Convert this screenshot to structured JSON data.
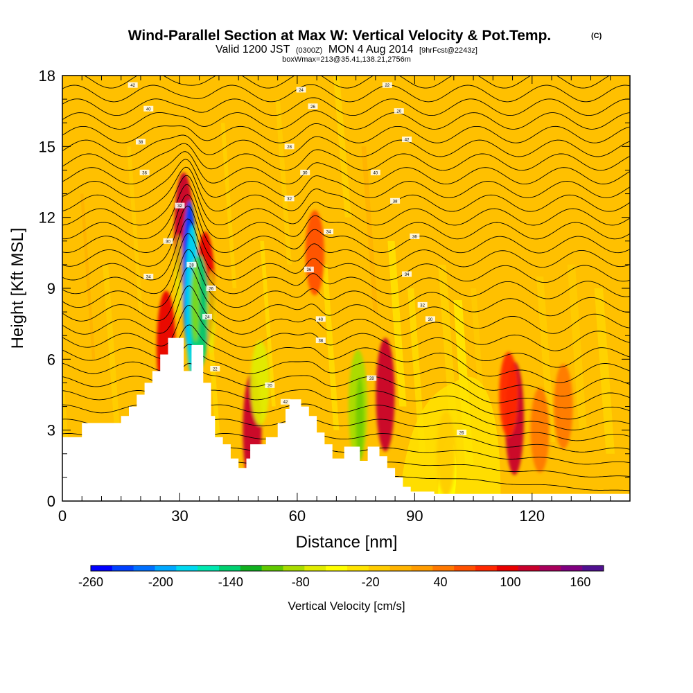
{
  "chart_data": {
    "type": "heatmap",
    "title": "Wind-Parallel Section at Max W: Vertical Velocity & Pot.Temp.",
    "title_mark": "(C)",
    "subtitle_a": "Valid 1200 JST",
    "subtitle_b": "(0300Z)",
    "subtitle_c": "MON 4 Aug 2014",
    "subtitle_d": "[9hrFcst@2243z]",
    "subtitle2": "boxWmax=213@35.41,138.21,2756m",
    "xlabel": "Distance [nm]",
    "ylabel": "Height [Kft MSL]",
    "xlim": [
      0,
      145
    ],
    "ylim": [
      0,
      18
    ],
    "x_ticks": [
      "0",
      "30",
      "60",
      "90",
      "120"
    ],
    "y_ticks": [
      "0",
      "3",
      "6",
      "9",
      "12",
      "15",
      "18"
    ],
    "colorbar": {
      "title": "Vertical Velocity [cm/s]",
      "labels": [
        "-260",
        "-200",
        "-140",
        "-80",
        "-20",
        "40",
        "100",
        "160"
      ],
      "min": -260,
      "max": 180,
      "colors": [
        "#0000ff",
        "#0040ff",
        "#0070ff",
        "#00a8ff",
        "#00d8f0",
        "#00e8b0",
        "#00d070",
        "#10b020",
        "#60c800",
        "#a8dc00",
        "#e0ec00",
        "#ffff00",
        "#ffe400",
        "#ffcc00",
        "#ffb400",
        "#ff9c00",
        "#ff7800",
        "#ff5000",
        "#ff2800",
        "#e80000",
        "#c8002c",
        "#a8005c",
        "#800080",
        "#501090"
      ]
    },
    "terrain_nm_kft": [
      [
        0,
        2.7
      ],
      [
        5,
        2.7
      ],
      [
        5,
        3.3
      ],
      [
        15,
        3.3
      ],
      [
        15,
        3.6
      ],
      [
        17,
        3.6
      ],
      [
        17,
        4.0
      ],
      [
        19,
        4.0
      ],
      [
        19,
        4.5
      ],
      [
        21,
        4.5
      ],
      [
        21,
        5.0
      ],
      [
        23,
        5.0
      ],
      [
        23,
        5.5
      ],
      [
        25,
        5.5
      ],
      [
        25,
        6.2
      ],
      [
        27,
        6.2
      ],
      [
        27,
        6.9
      ],
      [
        31,
        6.9
      ],
      [
        31,
        5.5
      ],
      [
        33,
        5.5
      ],
      [
        33,
        6.6
      ],
      [
        36,
        6.6
      ],
      [
        36,
        5.0
      ],
      [
        38,
        5.0
      ],
      [
        38,
        3.6
      ],
      [
        39,
        3.6
      ],
      [
        39,
        2.7
      ],
      [
        41,
        2.7
      ],
      [
        41,
        2.4
      ],
      [
        43,
        2.4
      ],
      [
        43,
        1.8
      ],
      [
        45,
        1.8
      ],
      [
        45,
        1.4
      ],
      [
        47,
        1.4
      ],
      [
        47,
        1.8
      ],
      [
        48,
        1.8
      ],
      [
        48,
        2.4
      ],
      [
        52,
        2.4
      ],
      [
        52,
        2.7
      ],
      [
        55,
        2.7
      ],
      [
        55,
        3.3
      ],
      [
        57,
        3.3
      ],
      [
        57,
        3.9
      ],
      [
        58,
        3.9
      ],
      [
        58,
        4.3
      ],
      [
        61,
        4.3
      ],
      [
        61,
        4.0
      ],
      [
        63,
        4.0
      ],
      [
        63,
        3.6
      ],
      [
        65,
        3.6
      ],
      [
        65,
        2.9
      ],
      [
        67,
        2.9
      ],
      [
        67,
        2.4
      ],
      [
        69,
        2.4
      ],
      [
        69,
        1.8
      ],
      [
        72,
        1.8
      ],
      [
        72,
        2.3
      ],
      [
        76,
        2.3
      ],
      [
        76,
        1.7
      ],
      [
        78,
        1.7
      ],
      [
        78,
        2.3
      ],
      [
        81,
        2.3
      ],
      [
        81,
        1.9
      ],
      [
        83,
        1.9
      ],
      [
        83,
        1.4
      ],
      [
        85,
        1.4
      ],
      [
        85,
        1.0
      ],
      [
        87,
        1.0
      ],
      [
        87,
        0.6
      ],
      [
        89,
        0.6
      ],
      [
        89,
        0.4
      ],
      [
        95,
        0.4
      ],
      [
        95,
        0.3
      ],
      [
        145,
        0.3
      ]
    ],
    "updraft_cores_nm_kft_cms": [
      {
        "x": 31.0,
        "y": 11.5,
        "value": 110
      },
      {
        "x": 36.5,
        "y": 9.0,
        "value": 100
      },
      {
        "x": 26.5,
        "y": 6.5,
        "value": 90
      },
      {
        "x": 48.5,
        "y": 3.0,
        "value": 110
      },
      {
        "x": 64.5,
        "y": 10.5,
        "value": 60
      },
      {
        "x": 82.5,
        "y": 4.5,
        "value": 110
      },
      {
        "x": 115.5,
        "y": 3.5,
        "value": 110
      },
      {
        "x": 114.0,
        "y": 4.5,
        "value": 80
      },
      {
        "x": 122.0,
        "y": 3.0,
        "value": 40
      },
      {
        "x": 128.0,
        "y": 4.0,
        "value": 35
      }
    ],
    "downdraft_cores_nm_kft_cms": [
      {
        "x": 32.5,
        "y": 9.5,
        "value": -230
      },
      {
        "x": 33.2,
        "y": 8.5,
        "value": -180
      },
      {
        "x": 35.0,
        "y": 8.0,
        "value": -150
      },
      {
        "x": 50.5,
        "y": 5.0,
        "value": -60
      },
      {
        "x": 75.5,
        "y": 4.0,
        "value": -90
      },
      {
        "x": 98.0,
        "y": 2.0,
        "value": -10
      }
    ],
    "isentrope_labels": [
      "42",
      "40",
      "38",
      "36",
      "34",
      "32",
      "30",
      "28",
      "26",
      "24",
      "22",
      "20"
    ]
  }
}
